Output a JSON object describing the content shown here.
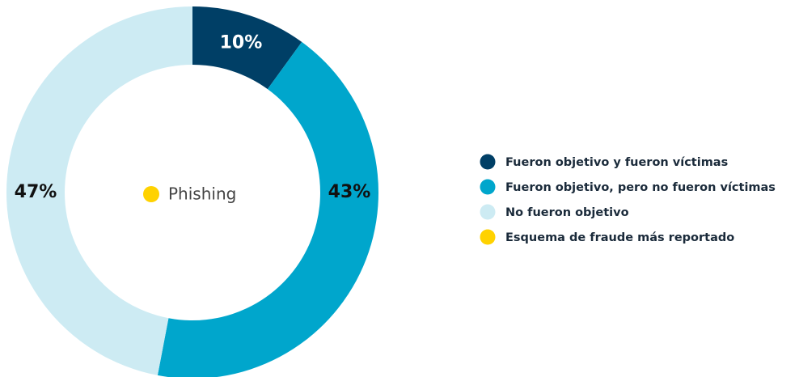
{
  "chart_data": {
    "type": "donut",
    "categories": [
      "Fueron objetivo y fueron víctimas",
      "Fueron objetivo, pero no fueron víctimas",
      "No fueron objetivo"
    ],
    "values": [
      10,
      43,
      47
    ],
    "value_labels": [
      "10%",
      "43%",
      "47%"
    ],
    "colors": [
      "#003f66",
      "#00a6cc",
      "#cdebf3"
    ],
    "highlight": {
      "label": "Phishing",
      "legend": "Esquema de fraude más reportado",
      "color": "#ffd200"
    }
  }
}
